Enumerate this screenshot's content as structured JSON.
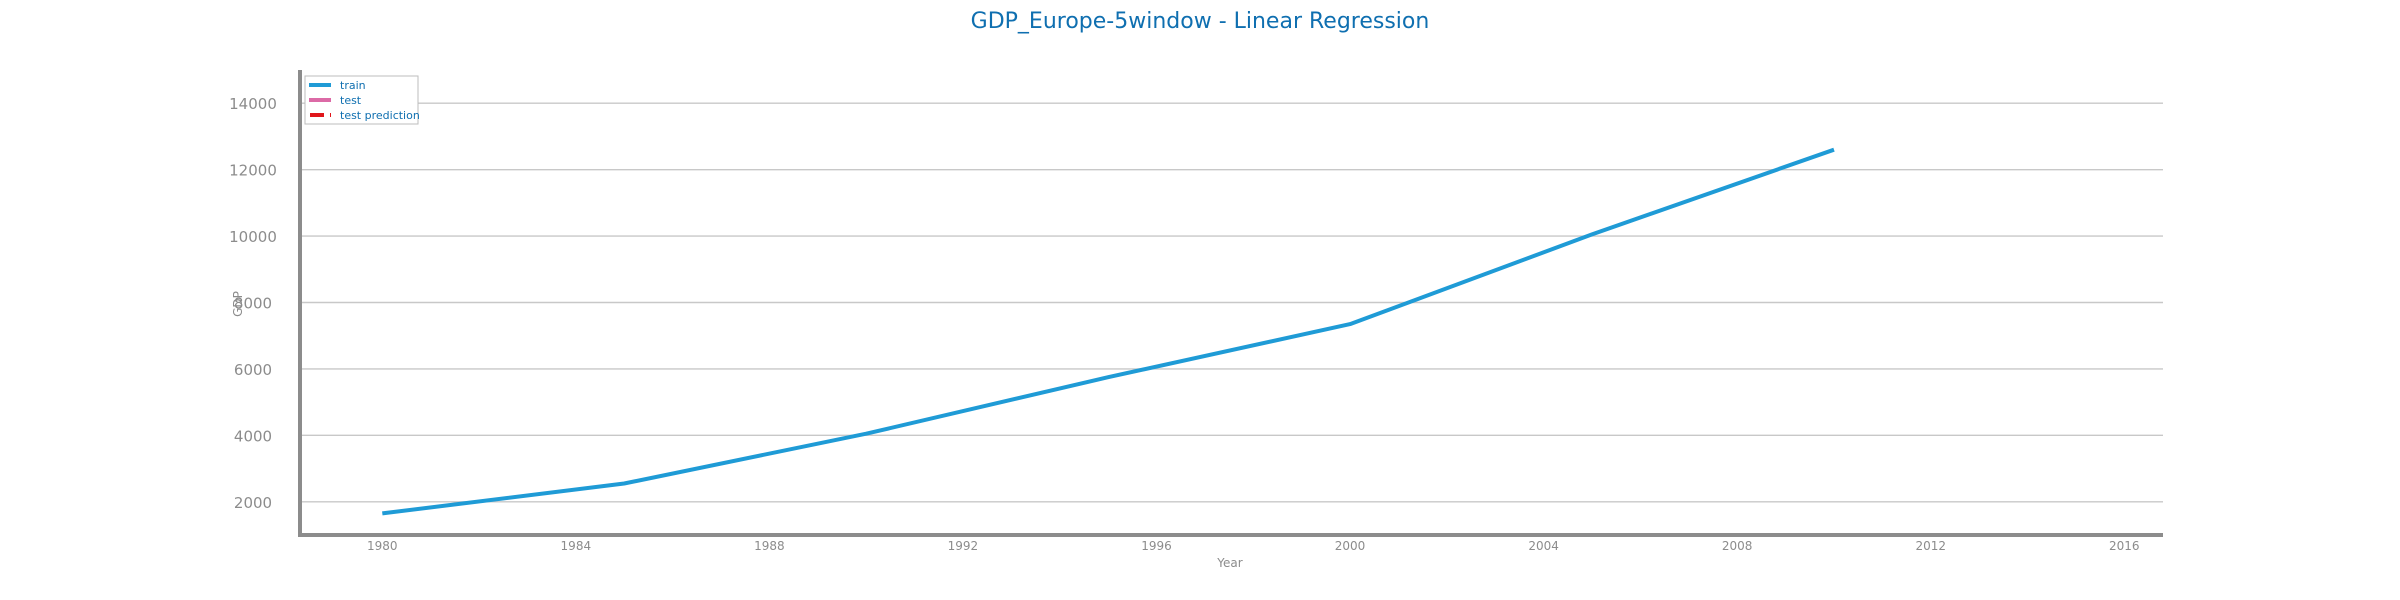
{
  "chart_data": {
    "type": "line",
    "title": "GDP_Europe-5window - Linear Regression",
    "xlabel": "Year",
    "ylabel": "GDP",
    "xlim": [
      1978.3,
      2016.8
    ],
    "ylim": [
      1000,
      15000
    ],
    "x_ticks": [
      1980,
      1984,
      1988,
      1992,
      1996,
      2000,
      2004,
      2008,
      2012,
      2016
    ],
    "y_ticks": [
      2000,
      4000,
      6000,
      8000,
      10000,
      12000,
      14000
    ],
    "grid": "horizontal",
    "legend_position": "top-left",
    "legend": [
      {
        "label": "train",
        "color": "#1f9bd6",
        "style": "solid"
      },
      {
        "label": "test",
        "color": "#dc6aa6",
        "style": "solid"
      },
      {
        "label": "test prediction",
        "color": "#e0161b",
        "style": "dashed"
      }
    ],
    "series": [
      {
        "name": "train",
        "color": "#1f9bd6",
        "x": [
          1980,
          1985,
          1990,
          1995,
          2000,
          2005,
          2010
        ],
        "y": [
          1650,
          2550,
          4050,
          5750,
          7350,
          10050,
          12600
        ]
      }
    ]
  }
}
